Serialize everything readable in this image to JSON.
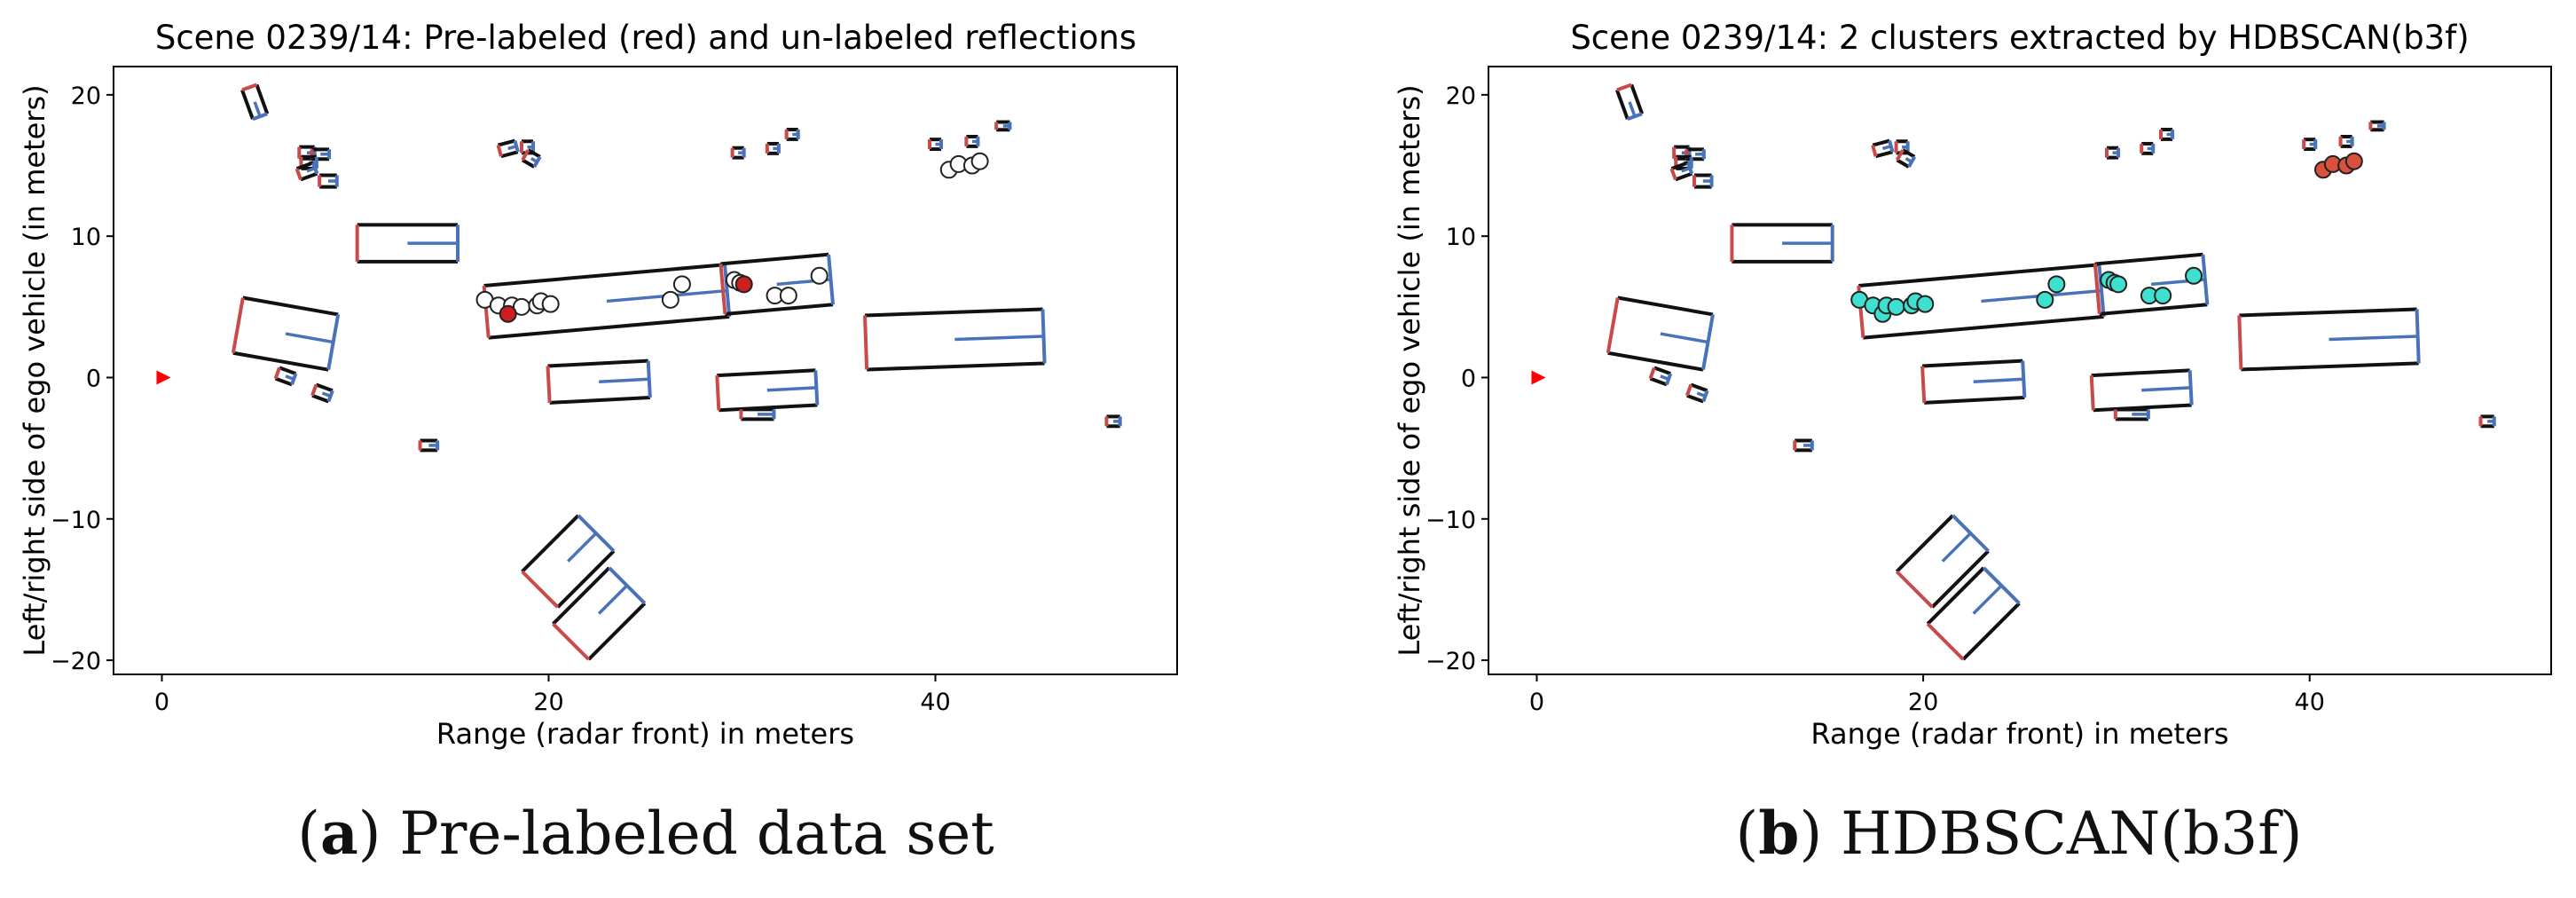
{
  "chart_data": [
    {
      "type": "scatter",
      "title": "Scene 0239/14: Pre-labeled (red) and un-labeled reflections",
      "xlabel": "Range (radar front) in meters",
      "ylabel": "Left/right side of ego vehicle (in meters)",
      "xlim": [
        -2.5,
        52.5
      ],
      "ylim": [
        -21,
        22
      ],
      "xticks": [
        0,
        20,
        40
      ],
      "yticks": [
        20,
        10,
        0,
        -10,
        -20
      ],
      "grid": false,
      "series": [
        {
          "style": "hollow",
          "color": "#ffffff",
          "points": [
            [
              16.7,
              5.5
            ],
            [
              17.4,
              5.1
            ],
            [
              18.1,
              5.1
            ],
            [
              18.6,
              5.0
            ],
            [
              19.4,
              5.1
            ],
            [
              19.6,
              5.4
            ],
            [
              20.1,
              5.2
            ],
            [
              26.3,
              5.5
            ],
            [
              26.9,
              6.6
            ],
            [
              31.7,
              5.8
            ],
            [
              32.4,
              5.8
            ],
            [
              34.0,
              7.2
            ],
            [
              40.7,
              14.7
            ],
            [
              41.2,
              15.1
            ],
            [
              41.9,
              15.0
            ],
            [
              42.3,
              15.3
            ],
            [
              29.6,
              6.9
            ],
            [
              29.9,
              6.7
            ]
          ]
        },
        {
          "style": "filled",
          "color": "#cc1f1f",
          "points": [
            [
              17.9,
              4.5
            ],
            [
              30.1,
              6.6
            ]
          ]
        }
      ]
    },
    {
      "type": "scatter",
      "title": "Scene 0239/14: 2 clusters extracted by HDBSCAN(b3f)",
      "xlabel": "Range (radar front) in meters",
      "ylabel": "Left/right side of ego vehicle (in meters)",
      "xlim": [
        -2.5,
        52.5
      ],
      "ylim": [
        -21,
        22
      ],
      "xticks": [
        0,
        20,
        40
      ],
      "yticks": [
        20,
        10,
        0,
        -10,
        -20
      ],
      "grid": false,
      "series": [
        {
          "style": "filled",
          "color": "#40e0d0",
          "points": [
            [
              16.7,
              5.5
            ],
            [
              17.4,
              5.1
            ],
            [
              17.9,
              4.5
            ],
            [
              18.1,
              5.1
            ],
            [
              18.6,
              5.0
            ],
            [
              19.4,
              5.1
            ],
            [
              19.6,
              5.4
            ],
            [
              20.1,
              5.2
            ],
            [
              26.3,
              5.5
            ],
            [
              26.9,
              6.6
            ],
            [
              29.6,
              6.9
            ],
            [
              29.9,
              6.7
            ],
            [
              30.1,
              6.6
            ],
            [
              31.7,
              5.8
            ],
            [
              32.4,
              5.8
            ],
            [
              34.0,
              7.2
            ]
          ]
        },
        {
          "style": "filled",
          "color": "#d9503c",
          "points": [
            [
              40.7,
              14.7
            ],
            [
              41.2,
              15.1
            ],
            [
              41.9,
              15.0
            ],
            [
              42.3,
              15.3
            ]
          ]
        }
      ]
    }
  ],
  "scene_boxes": [
    {
      "cx": 4.8,
      "cy": 19.5,
      "len": 1.6,
      "wid": 0.8,
      "ang": -70
    },
    {
      "cx": 7.5,
      "cy": 15.9,
      "len": 0.8,
      "wid": 0.6,
      "ang": 0
    },
    {
      "cx": 8.2,
      "cy": 15.8,
      "len": 0.9,
      "wid": 0.5,
      "ang": 0
    },
    {
      "cx": 7.6,
      "cy": 15.2,
      "len": 0.8,
      "wid": 0.6,
      "ang": 0
    },
    {
      "cx": 7.5,
      "cy": 14.6,
      "len": 0.9,
      "wid": 0.6,
      "ang": 20
    },
    {
      "cx": 8.6,
      "cy": 13.9,
      "len": 0.9,
      "wid": 0.6,
      "ang": 0
    },
    {
      "cx": 12.7,
      "cy": 9.5,
      "len": 5.2,
      "wid": 1.9,
      "ang": 0
    },
    {
      "cx": 6.4,
      "cy": 3.1,
      "len": 5.0,
      "wid": 2.9,
      "ang": -10
    },
    {
      "cx": 6.4,
      "cy": 0.1,
      "len": 0.9,
      "wid": 0.6,
      "ang": -20
    },
    {
      "cx": 8.3,
      "cy": -1.1,
      "len": 0.9,
      "wid": 0.6,
      "ang": -20
    },
    {
      "cx": 13.8,
      "cy": -4.8,
      "len": 0.9,
      "wid": 0.5,
      "ang": 0
    },
    {
      "cx": 17.9,
      "cy": 16.2,
      "len": 0.9,
      "wid": 0.6,
      "ang": 15
    },
    {
      "cx": 18.9,
      "cy": 16.3,
      "len": 0.6,
      "wid": 0.6,
      "ang": 0
    },
    {
      "cx": 19.1,
      "cy": 15.5,
      "len": 0.7,
      "wid": 0.6,
      "ang": -30
    },
    {
      "cx": 23.0,
      "cy": 5.4,
      "len": 12.5,
      "wid": 2.7,
      "ang": 5
    },
    {
      "cx": 22.6,
      "cy": -0.3,
      "len": 5.2,
      "wid": 1.9,
      "ang": 3
    },
    {
      "cx": 31.8,
      "cy": 6.6,
      "len": 5.6,
      "wid": 2.6,
      "ang": 5
    },
    {
      "cx": 31.3,
      "cy": -0.9,
      "len": 5.1,
      "wid": 1.8,
      "ang": 3
    },
    {
      "cx": 30.8,
      "cy": -2.6,
      "len": 1.7,
      "wid": 0.5,
      "ang": 0
    },
    {
      "cx": 29.8,
      "cy": 15.9,
      "len": 0.6,
      "wid": 0.5,
      "ang": 0
    },
    {
      "cx": 31.6,
      "cy": 16.2,
      "len": 0.6,
      "wid": 0.5,
      "ang": 0
    },
    {
      "cx": 32.6,
      "cy": 17.2,
      "len": 0.6,
      "wid": 0.5,
      "ang": 0
    },
    {
      "cx": 41.0,
      "cy": 2.7,
      "len": 9.2,
      "wid": 2.8,
      "ang": 2
    },
    {
      "cx": 40.0,
      "cy": 16.5,
      "len": 0.6,
      "wid": 0.5,
      "ang": 0
    },
    {
      "cx": 41.9,
      "cy": 16.7,
      "len": 0.6,
      "wid": 0.5,
      "ang": 0
    },
    {
      "cx": 43.5,
      "cy": 17.8,
      "len": 0.7,
      "wid": 0.4,
      "ang": 0
    },
    {
      "cx": 49.2,
      "cy": -3.1,
      "len": 0.7,
      "wid": 0.5,
      "ang": 0
    },
    {
      "cx": 21.0,
      "cy": -13.0,
      "len": 4.1,
      "wid": 2.6,
      "ang": 45
    },
    {
      "cx": 22.6,
      "cy": -16.7,
      "len": 4.1,
      "wid": 2.6,
      "ang": 45
    }
  ],
  "ego_marker": {
    "x": 0,
    "y": 0,
    "color": "#ff0000"
  },
  "captions": {
    "a_letter": "a",
    "a_text": " Pre-labeled data set",
    "b_letter": "b",
    "b_text": " HDBSCAN(b3f)"
  }
}
